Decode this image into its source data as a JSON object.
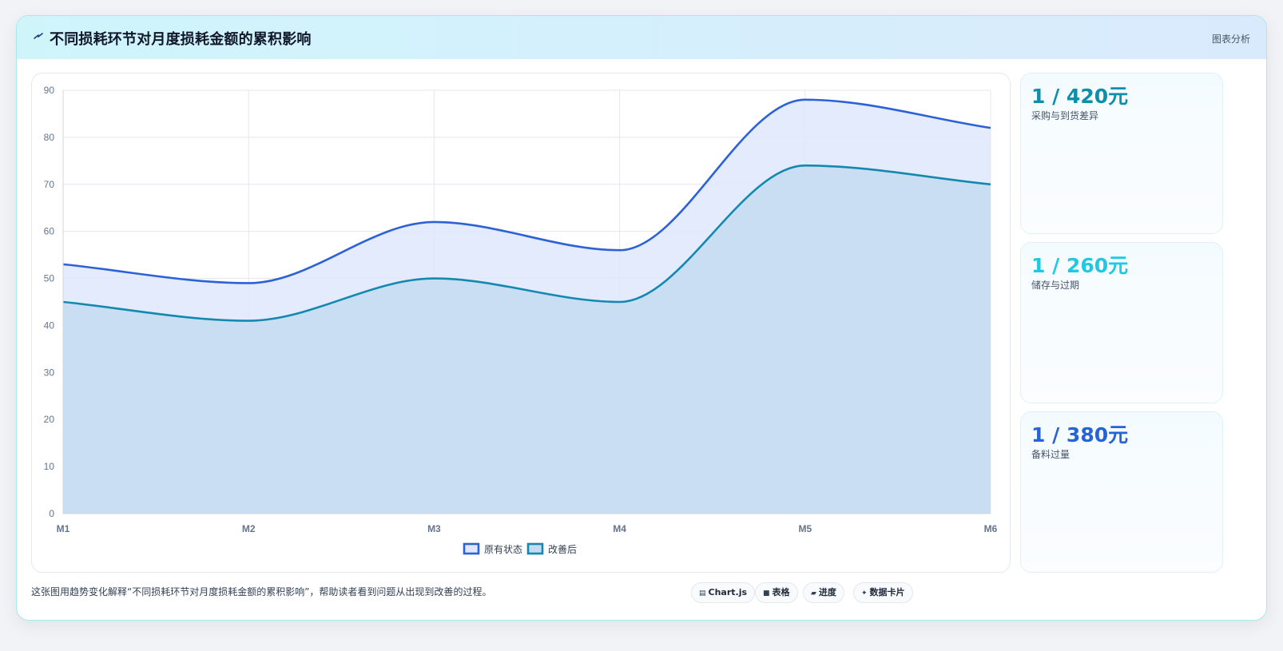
{
  "header": {
    "icon": "lightning-icon",
    "title": "不同损耗环节对月度损耗金额的累积影响",
    "tag": "图表分析"
  },
  "stats": [
    {
      "value": "1 / 420元",
      "label": "采购与到货差异",
      "color": "#0e8ea8"
    },
    {
      "value": "1 / 260元",
      "label": "储存与过期",
      "color": "#22c7e0"
    },
    {
      "value": "1 / 380元",
      "label": "备料过量",
      "color": "#2563d6"
    }
  ],
  "footer": {
    "text": "这张图用趋势变化解释“不同损耗环节对月度损耗金额的累积影响”，帮助读者看到问题从出现到改善的过程。",
    "chips": [
      {
        "icon": "chart-icon",
        "label": "Chart.js"
      },
      {
        "icon": "table-icon",
        "label": "表格"
      },
      {
        "icon": "progress-icon",
        "label": "进度"
      },
      {
        "icon": "card-icon",
        "label": "数据卡片"
      }
    ]
  },
  "chart_data": {
    "type": "area",
    "categories": [
      "M1",
      "M2",
      "M3",
      "M4",
      "M5",
      "M6"
    ],
    "series": [
      {
        "name": "原有状态",
        "values": [
          53,
          49,
          62,
          56,
          88,
          82
        ],
        "color": "#2c62d6",
        "fill": "#dfe8fb"
      },
      {
        "name": "改善后",
        "values": [
          45,
          41,
          50,
          45,
          74,
          70
        ],
        "color": "#1389b0",
        "fill": "#c4dcf1"
      }
    ],
    "ylim": [
      0,
      90
    ],
    "yticks": [
      0,
      10,
      20,
      30,
      40,
      50,
      60,
      70,
      80,
      90
    ],
    "grid": true,
    "legend": "bottom-center"
  }
}
